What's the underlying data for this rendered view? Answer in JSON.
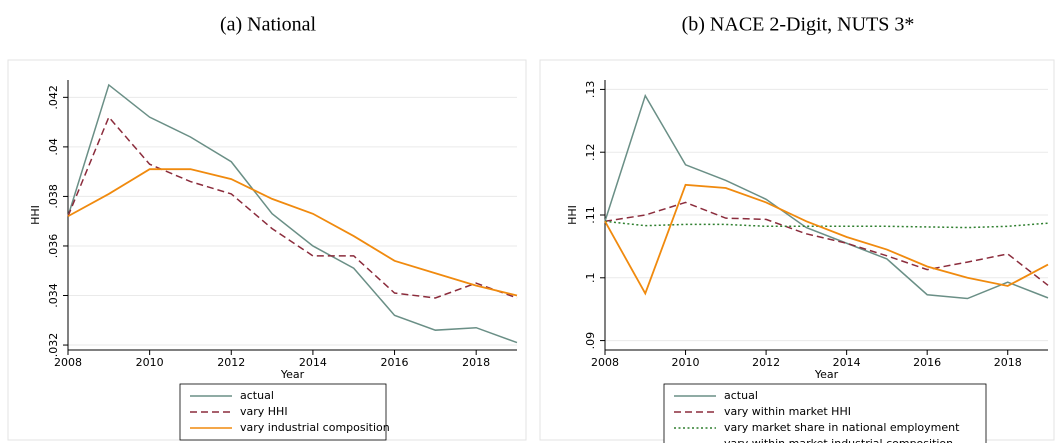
{
  "chart_data": [
    {
      "type": "line",
      "title": "(a) National",
      "xlabel": "Year",
      "ylabel": "HHI",
      "x": [
        2008,
        2009,
        2010,
        2011,
        2012,
        2013,
        2014,
        2015,
        2016,
        2017,
        2018,
        2019
      ],
      "xlim": [
        2008,
        2019
      ],
      "xticks": [
        2008,
        2010,
        2012,
        2014,
        2016,
        2018
      ],
      "ylim": [
        0.0318,
        0.0427
      ],
      "yticks": [
        {
          "value": 0.032,
          "label": ".032"
        },
        {
          "value": 0.034,
          "label": ".034"
        },
        {
          "value": 0.036,
          "label": ".036"
        },
        {
          "value": 0.038,
          "label": ".038"
        },
        {
          "value": 0.04,
          "label": ".04"
        },
        {
          "value": 0.042,
          "label": ".042"
        }
      ],
      "grid": true,
      "legend": "bottom",
      "series": [
        {
          "name": "actual",
          "color": "#6a8f86",
          "style": "solid",
          "values": [
            0.0372,
            0.0425,
            0.0412,
            0.0404,
            0.0394,
            0.0373,
            0.036,
            0.0351,
            0.0332,
            0.0326,
            0.0327,
            0.0321
          ]
        },
        {
          "name": "vary HHI",
          "color": "#8b2c3c",
          "style": "dashed",
          "values": [
            0.0372,
            0.0412,
            0.0393,
            0.0386,
            0.0381,
            0.0367,
            0.0356,
            0.0356,
            0.0341,
            0.0339,
            0.0345,
            0.0339
          ]
        },
        {
          "name": "vary industrial composition",
          "color": "#f08a0e",
          "style": "solid",
          "values": [
            0.0372,
            0.0381,
            0.0391,
            0.0391,
            0.0387,
            0.0379,
            0.0373,
            0.0364,
            0.0354,
            0.0349,
            0.0344,
            0.034
          ]
        }
      ]
    },
    {
      "type": "line",
      "title": "(b) NACE 2-Digit, NUTS 3*",
      "xlabel": "Year",
      "ylabel": "HHI",
      "x": [
        2008,
        2009,
        2010,
        2011,
        2012,
        2013,
        2014,
        2015,
        2016,
        2017,
        2018,
        2019
      ],
      "xlim": [
        2008,
        2019
      ],
      "xticks": [
        2008,
        2010,
        2012,
        2014,
        2016,
        2018
      ],
      "ylim": [
        0.0885,
        0.1315
      ],
      "yticks": [
        {
          "value": 0.09,
          "label": ".09"
        },
        {
          "value": 0.1,
          "label": ".1"
        },
        {
          "value": 0.11,
          "label": ".11"
        },
        {
          "value": 0.12,
          "label": ".12"
        },
        {
          "value": 0.13,
          "label": ".13"
        }
      ],
      "grid": true,
      "legend": "bottom",
      "series": [
        {
          "name": "actual",
          "color": "#6a8f86",
          "style": "solid",
          "values": [
            0.109,
            0.129,
            0.118,
            0.1155,
            0.1125,
            0.108,
            0.1055,
            0.103,
            0.0973,
            0.0967,
            0.0993,
            0.0968
          ]
        },
        {
          "name": "vary within market HHI",
          "color": "#8b2c3c",
          "style": "dashed",
          "values": [
            0.109,
            0.11,
            0.112,
            0.1095,
            0.1093,
            0.107,
            0.1055,
            0.1035,
            0.1013,
            0.1025,
            0.1038,
            0.0988
          ]
        },
        {
          "name": "vary market share in national employment",
          "color": "#2f7f2f",
          "style": "dotted",
          "values": [
            0.109,
            0.1083,
            0.1085,
            0.1085,
            0.1082,
            0.1082,
            0.1082,
            0.1082,
            0.1081,
            0.108,
            0.1082,
            0.1087
          ]
        },
        {
          "name": "vary within market industrial composition",
          "color": "#f08a0e",
          "style": "solid",
          "values": [
            0.109,
            0.0975,
            0.1148,
            0.1143,
            0.112,
            0.109,
            0.1065,
            0.1045,
            0.1018,
            0.1,
            0.0987,
            0.1021
          ]
        }
      ]
    }
  ]
}
